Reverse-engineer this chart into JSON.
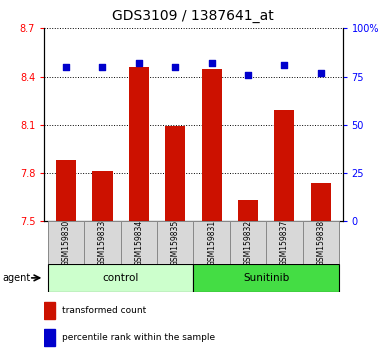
{
  "title": "GDS3109 / 1387641_at",
  "samples": [
    "GSM159830",
    "GSM159833",
    "GSM159834",
    "GSM159835",
    "GSM159831",
    "GSM159832",
    "GSM159837",
    "GSM159838"
  ],
  "bar_values": [
    7.88,
    7.81,
    8.46,
    8.09,
    8.45,
    7.63,
    8.19,
    7.74
  ],
  "bar_base": 7.5,
  "percentile_values": [
    80,
    80,
    82,
    80,
    82,
    76,
    81,
    77
  ],
  "groups": [
    {
      "label": "control",
      "indices": [
        0,
        1,
        2,
        3
      ],
      "color": "#ccffcc"
    },
    {
      "label": "Sunitinib",
      "indices": [
        4,
        5,
        6,
        7
      ],
      "color": "#44dd44"
    }
  ],
  "ylim_left": [
    7.5,
    8.7
  ],
  "ylim_right": [
    0,
    100
  ],
  "yticks_left": [
    7.5,
    7.8,
    8.1,
    8.4,
    8.7
  ],
  "yticks_right": [
    0,
    25,
    50,
    75,
    100
  ],
  "ytick_labels_right": [
    "0",
    "25",
    "50",
    "75",
    "100%"
  ],
  "bar_color": "#cc1100",
  "dot_color": "#0000cc",
  "bar_width": 0.55,
  "legend_items": [
    {
      "color": "#cc1100",
      "label": "transformed count"
    },
    {
      "color": "#0000cc",
      "label": "percentile rank within the sample"
    }
  ],
  "title_fontsize": 10,
  "tick_fontsize": 7,
  "sample_fontsize": 5.5,
  "group_fontsize": 7.5,
  "legend_fontsize": 6.5,
  "figure_width": 3.85,
  "figure_height": 3.54,
  "figure_dpi": 100
}
